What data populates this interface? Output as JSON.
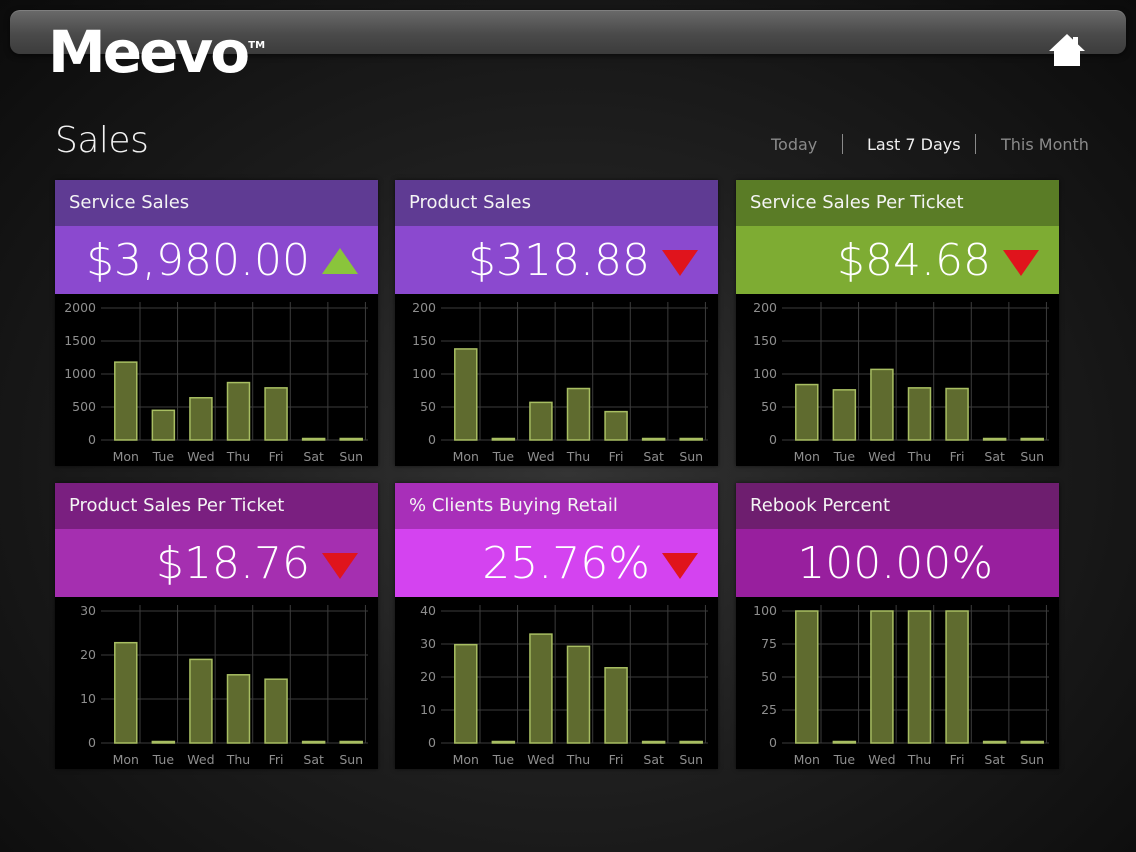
{
  "app": {
    "logo": "Meevo",
    "trademark": "TM"
  },
  "header": {
    "home_icon": "home-icon"
  },
  "page": {
    "title": "Sales"
  },
  "ranges": [
    {
      "label": "Today",
      "active": false
    },
    {
      "label": "Last 7 Days",
      "active": true
    },
    {
      "label": "This Month",
      "active": false
    }
  ],
  "colors": {
    "purple_head": "#5f3b93",
    "purple_value": "#8b49cf",
    "green_head": "#5a7c26",
    "green_value": "#7eac33",
    "magenta_head": "#7a1f80",
    "magenta_value": "#a52fb0",
    "pink_head": "#a82fb9",
    "pink_value": "#d443f0",
    "plum_head": "#6e1e6f",
    "plum_value": "#981f9e",
    "bar_fill": "#5f6b2f",
    "bar_stroke": "#a8be62",
    "trend_up": "#8ac53b",
    "trend_down": "#e0141c"
  },
  "cards": [
    {
      "title": "Service Sales",
      "value": "$3,980.00",
      "trend": "up",
      "head_color": "#5f3b93",
      "value_color": "#8b49cf"
    },
    {
      "title": "Product Sales",
      "value": "$318.88",
      "trend": "down",
      "head_color": "#5f3b93",
      "value_color": "#8b49cf"
    },
    {
      "title": "Service Sales Per Ticket",
      "value": "$84.68",
      "trend": "down",
      "head_color": "#5a7c26",
      "value_color": "#7eac33"
    },
    {
      "title": "Product Sales Per Ticket",
      "value": "$18.76",
      "trend": "down",
      "head_color": "#7a1f80",
      "value_color": "#a52fb0"
    },
    {
      "title": "% Clients Buying Retail",
      "value": "25.76%",
      "trend": "down",
      "head_color": "#a82fb9",
      "value_color": "#d443f0"
    },
    {
      "title": "Rebook Percent",
      "value": "100.00%",
      "trend": "none",
      "head_color": "#6e1e6f",
      "value_color": "#981f9e"
    }
  ],
  "chart_data": [
    {
      "type": "bar",
      "categories": [
        "Mon",
        "Tue",
        "Wed",
        "Thu",
        "Fri",
        "Sat",
        "Sun"
      ],
      "values": [
        1180,
        450,
        640,
        870,
        790,
        0,
        0
      ],
      "ylim": [
        0,
        2000
      ],
      "yticks": [
        0,
        500,
        1000,
        1500,
        2000
      ],
      "grid": true
    },
    {
      "type": "bar",
      "categories": [
        "Mon",
        "Tue",
        "Wed",
        "Thu",
        "Fri",
        "Sat",
        "Sun"
      ],
      "values": [
        138,
        0,
        57,
        78,
        43,
        0,
        0
      ],
      "ylim": [
        0,
        200
      ],
      "yticks": [
        0,
        50,
        100,
        150,
        200
      ],
      "grid": true
    },
    {
      "type": "bar",
      "categories": [
        "Mon",
        "Tue",
        "Wed",
        "Thu",
        "Fri",
        "Sat",
        "Sun"
      ],
      "values": [
        84,
        76,
        107,
        79,
        78,
        0,
        0
      ],
      "ylim": [
        0,
        200
      ],
      "yticks": [
        0,
        50,
        100,
        150,
        200
      ],
      "grid": true
    },
    {
      "type": "bar",
      "categories": [
        "Mon",
        "Tue",
        "Wed",
        "Thu",
        "Fri",
        "Sat",
        "Sun"
      ],
      "values": [
        22.8,
        0,
        19,
        15.5,
        14.5,
        0,
        0
      ],
      "ylim": [
        0,
        30
      ],
      "yticks": [
        0,
        10,
        20,
        30
      ],
      "grid": true
    },
    {
      "type": "bar",
      "categories": [
        "Mon",
        "Tue",
        "Wed",
        "Thu",
        "Fri",
        "Sat",
        "Sun"
      ],
      "values": [
        29.8,
        0,
        33,
        29.3,
        22.8,
        0,
        0
      ],
      "ylim": [
        0,
        40
      ],
      "yticks": [
        0,
        10,
        20,
        30,
        40
      ],
      "grid": true
    },
    {
      "type": "bar",
      "categories": [
        "Mon",
        "Tue",
        "Wed",
        "Thu",
        "Fri",
        "Sat",
        "Sun"
      ],
      "values": [
        100,
        0,
        100,
        100,
        100,
        0,
        0
      ],
      "ylim": [
        0,
        100
      ],
      "yticks": [
        0,
        25,
        50,
        75,
        100
      ],
      "grid": true
    }
  ]
}
